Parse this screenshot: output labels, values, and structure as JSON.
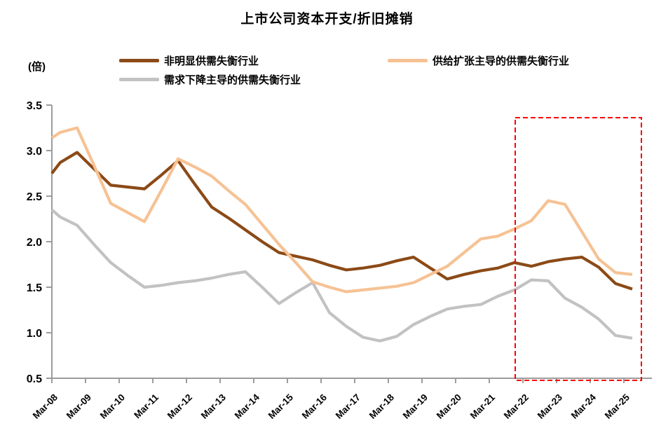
{
  "chart_data": {
    "type": "line",
    "title": "上市公司资本开支/折旧摊销",
    "unit_label": "(倍)",
    "grid": false,
    "legend_position": "top",
    "ylim": [
      0.5,
      3.5
    ],
    "y_ticks": [
      "3.5",
      "3.0",
      "2.5",
      "2.0",
      "1.5",
      "1.0",
      "0.5"
    ],
    "x_tick_labels": [
      "Mar-08",
      "Mar-09",
      "Mar-10",
      "Mar-11",
      "Mar-12",
      "Mar-13",
      "Mar-14",
      "Mar-15",
      "Mar-16",
      "Mar-17",
      "Mar-18",
      "Mar-19",
      "Mar-20",
      "Mar-21",
      "Mar-22",
      "Mar-23",
      "Mar-24",
      "Mar-25"
    ],
    "x": [
      "Mar-08",
      "Sep-08",
      "Mar-09",
      "Sep-09",
      "Mar-10",
      "Sep-10",
      "Mar-11",
      "Sep-11",
      "Mar-12",
      "Sep-12",
      "Mar-13",
      "Sep-13",
      "Mar-14",
      "Sep-14",
      "Mar-15",
      "Sep-15",
      "Mar-16",
      "Sep-16",
      "Mar-17",
      "Sep-17",
      "Mar-18",
      "Sep-18",
      "Mar-19",
      "Sep-19",
      "Mar-20",
      "Sep-20",
      "Mar-21",
      "Sep-21",
      "Mar-22",
      "Sep-22",
      "Mar-23",
      "Sep-23",
      "Mar-24",
      "Sep-24",
      "Mar-25",
      "Sep-25"
    ],
    "series": [
      {
        "name": "非明显供需失衡行业",
        "color": "#8B4A17",
        "values": [
          2.75,
          2.87,
          2.98,
          2.8,
          2.62,
          2.6,
          2.58,
          2.73,
          2.89,
          2.63,
          2.38,
          2.26,
          2.13,
          2.0,
          1.88,
          1.84,
          1.8,
          1.74,
          1.69,
          1.71,
          1.74,
          1.79,
          1.83,
          1.71,
          1.59,
          1.64,
          1.68,
          1.71,
          1.77,
          1.73,
          1.78,
          1.81,
          1.83,
          1.72,
          1.54,
          1.48
        ]
      },
      {
        "name": "供给扩张主导的供需失衡行业",
        "color": "#F6C294",
        "values": [
          3.14,
          3.2,
          3.25,
          2.84,
          2.42,
          2.32,
          2.22,
          2.56,
          2.91,
          2.82,
          2.72,
          2.56,
          2.41,
          2.19,
          1.97,
          1.77,
          1.56,
          1.5,
          1.45,
          1.47,
          1.49,
          1.51,
          1.55,
          1.64,
          1.73,
          1.88,
          2.03,
          2.06,
          2.14,
          2.23,
          2.45,
          2.41,
          2.11,
          1.81,
          1.66,
          1.64
        ]
      },
      {
        "name": "需求下降主导的供需失衡行业",
        "color": "#C2C2C2",
        "values": [
          2.35,
          2.27,
          2.18,
          1.97,
          1.77,
          1.63,
          1.5,
          1.52,
          1.55,
          1.57,
          1.6,
          1.64,
          1.67,
          1.5,
          1.32,
          1.44,
          1.55,
          1.22,
          1.07,
          0.95,
          0.91,
          0.96,
          1.09,
          1.18,
          1.26,
          1.29,
          1.31,
          1.4,
          1.47,
          1.58,
          1.57,
          1.38,
          1.28,
          1.15,
          0.97,
          0.94
        ]
      }
    ],
    "highlight_box": {
      "from": "Mar-22",
      "to": "Sep-25",
      "color": "#FF0000",
      "style": "dashed"
    },
    "axis_color": "#9C9C9C"
  }
}
